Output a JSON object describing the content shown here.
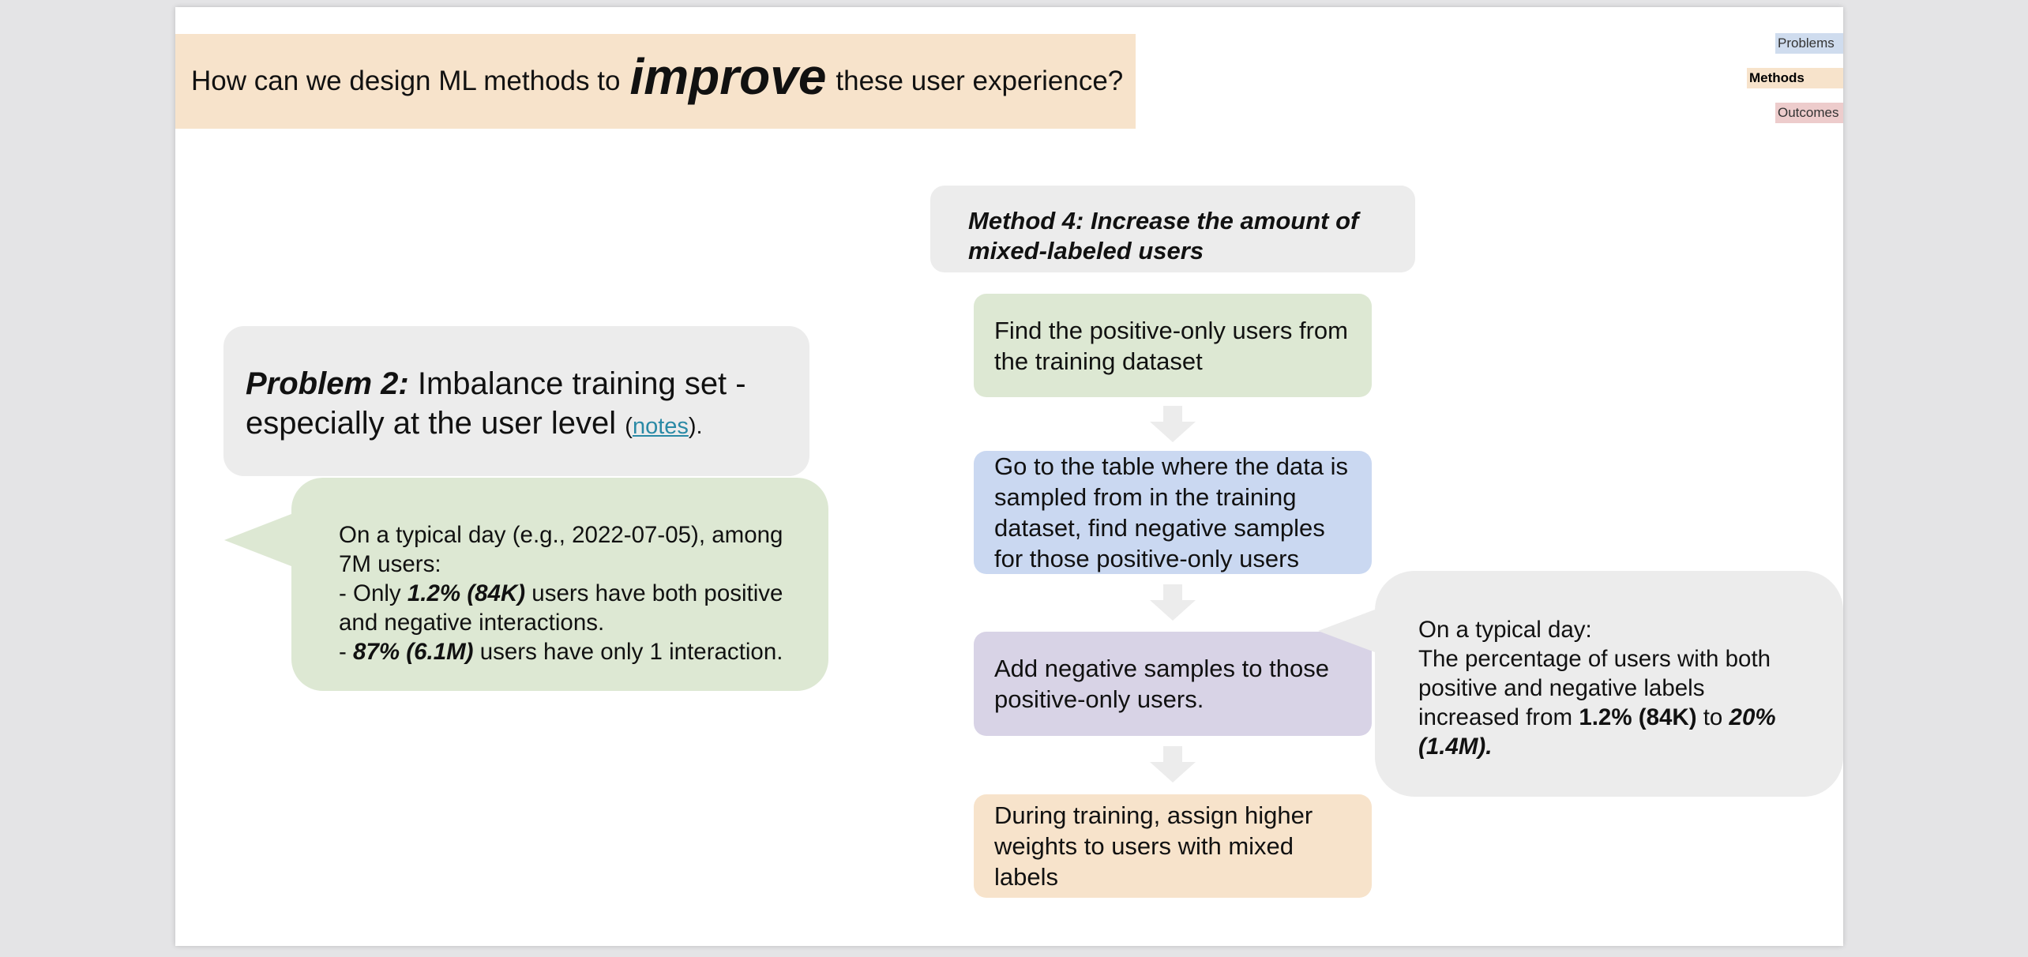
{
  "header": {
    "title_before": "How can we design ML methods to",
    "title_emphasis": "improve",
    "title_after": "these user experience?"
  },
  "nav": {
    "problems": "Problems",
    "methods": "Methods",
    "outcomes": "Outcomes",
    "active": "Methods"
  },
  "problem": {
    "label": "Problem 2:",
    "text": "Imbalance training set - especially at the user level",
    "notes_open": "(",
    "notes_link": "notes",
    "notes_close": ")."
  },
  "problem_callout": {
    "line1": "On a typical day (e.g., 2022-07-05), among 7M users:",
    "item1_prefix": "- Only",
    "item1_value": "1.2% (84K)",
    "item1_suffix": "users have both positive and negative interactions.",
    "item2_prefix": "-",
    "item2_value": "87% (6.1M)",
    "item2_suffix": "users have only 1 interaction."
  },
  "method": {
    "title": "Method 4: Increase the amount of mixed-labeled users",
    "steps": [
      "Find the positive-only users from the training dataset",
      "Go to the table where the data is sampled from in the training dataset, find negative samples for those positive-only users",
      "Add negative samples to those positive-only users.",
      "During training, assign higher weights to users with mixed labels"
    ]
  },
  "outcome_callout": {
    "line1": "On a typical day:",
    "text": "The percentage of users with both positive and negative labels increased from",
    "from_value": "1.2% (84K)",
    "to_word": "to",
    "to_value": "20% (1.4M)."
  },
  "colors": {
    "banner": "#f7e3cb",
    "green": "#dde8d3",
    "blue": "#cad8f1",
    "purple": "#d8d3e6",
    "gray": "#ececec",
    "nav_problems": "#cfdcee",
    "nav_outcomes": "#edcccc",
    "link": "#2a8aa6"
  },
  "icons": {
    "flow_arrow": "down-arrow-icon"
  }
}
